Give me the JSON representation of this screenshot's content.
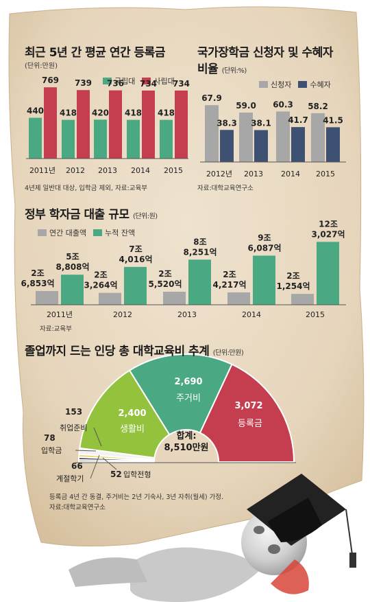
{
  "colors": {
    "public": "#4aa883",
    "private": "#c43e4f",
    "applicant": "#a7a7a7",
    "recipient": "#3f5173",
    "annual": "#a7a7a7",
    "cumulative": "#4aa883",
    "living": "#93c23c",
    "housing": "#4aa883",
    "tuition": "#c43e4f",
    "jobprep": "#f2f2f2",
    "admission": "#f3d67a",
    "seasonal": "#3a3a3a",
    "entrance": "#9a9a9a"
  },
  "chart1": {
    "title": "최근 5년 간 평균 연간 등록금",
    "unit": "(단위:만원)",
    "legend": [
      "국립대",
      "사립대"
    ],
    "source": "4년제 일반대 대상, 입학금 제외, 자료:교육부"
  },
  "chart2": {
    "title_line1": "국가장학금 신청자 및 수혜자",
    "title_line2": "비율",
    "unit": "(단위:%)",
    "legend": [
      "신청자",
      "수혜자"
    ],
    "source": "자료:대학교육연구소"
  },
  "chart3": {
    "title": "정부 학자금 대출 규모",
    "unit": "(단위:원)",
    "legend": [
      "연간 대출액",
      "누적 잔액"
    ],
    "source": "자료:교육부"
  },
  "chart4": {
    "title": "졸업까지 드는 인당 총 대학교육비 추계",
    "unit": "(단위:만원)",
    "total_label": "합계:",
    "total_value": "8,510만원",
    "note_line1": "등록금 4년 간 동결, 주거비는 2년 기숙사, 3년 자취(월세) 가정.",
    "note_line2": "자료:대학교육연구소"
  },
  "chart_data": [
    {
      "type": "bar",
      "title": "최근 5년 간 평균 연간 등록금",
      "categories": [
        "2011년",
        "2012",
        "2013",
        "2014",
        "2015"
      ],
      "series": [
        {
          "name": "국립대",
          "values": [
            440,
            418,
            420,
            418,
            418
          ],
          "labels": [
            "440",
            "418",
            "420",
            "418",
            "418"
          ]
        },
        {
          "name": "사립대",
          "values": [
            769,
            739,
            736,
            734,
            734
          ],
          "labels": [
            "769",
            "739",
            "736",
            "734",
            "734"
          ]
        }
      ]
    },
    {
      "type": "bar",
      "title": "국가장학금 신청자 및 수혜자 비율",
      "categories": [
        "2012년",
        "2013",
        "2014",
        "2015"
      ],
      "series": [
        {
          "name": "신청자",
          "values": [
            67.9,
            59.0,
            60.3,
            58.2
          ],
          "labels": [
            "67.9",
            "59.0",
            "60.3",
            "58.2"
          ]
        },
        {
          "name": "수혜자",
          "values": [
            38.3,
            38.1,
            41.7,
            41.5
          ],
          "labels": [
            "38.3",
            "38.1",
            "41.7",
            "41.5"
          ]
        }
      ]
    },
    {
      "type": "bar",
      "title": "정부 학자금 대출 규모",
      "categories": [
        "2011년",
        "2012",
        "2013",
        "2014",
        "2015"
      ],
      "series": [
        {
          "name": "연간 대출액",
          "values": [
            26853,
            23264,
            25520,
            24217,
            21254
          ],
          "labels": [
            [
              "2조",
              "6,853억"
            ],
            [
              "2조",
              "3,264억"
            ],
            [
              "2조",
              "5,520억"
            ],
            [
              "2조",
              "4,217억"
            ],
            [
              "2조",
              "1,254억"
            ]
          ]
        },
        {
          "name": "누적 잔액",
          "values": [
            58808,
            74016,
            88251,
            96087,
            123027
          ],
          "labels": [
            [
              "5조",
              "8,808억"
            ],
            [
              "7조",
              "4,016억"
            ],
            [
              "8조",
              "8,251억"
            ],
            [
              "9조",
              "6,087억"
            ],
            [
              "12조",
              "3,027억"
            ]
          ]
        }
      ]
    },
    {
      "type": "pie",
      "title": "졸업까지 드는 인당 총 대학교육비 추계",
      "slices": [
        {
          "name": "등록금",
          "value": 3072,
          "label": "3,072"
        },
        {
          "name": "주거비",
          "value": 2690,
          "label": "2,690"
        },
        {
          "name": "생활비",
          "value": 2400,
          "label": "2,400"
        },
        {
          "name": "취업준비",
          "value": 153,
          "label": "153"
        },
        {
          "name": "입학금",
          "value": 78,
          "label": "78"
        },
        {
          "name": "계절학기",
          "value": 66,
          "label": "66"
        },
        {
          "name": "입학전형",
          "value": 52,
          "label": "52"
        }
      ],
      "total": 8510
    }
  ]
}
